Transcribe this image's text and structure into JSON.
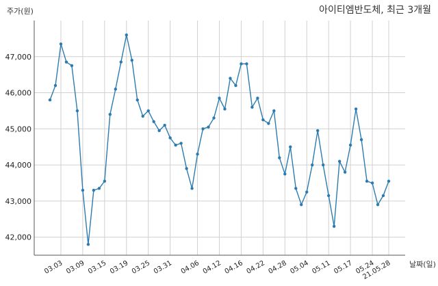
{
  "chart_data": {
    "type": "line",
    "title": "아이티엠반도체, 최근 3개월",
    "ylabel": "주가(원)",
    "xlabel": "날짜(일)",
    "ylim": [
      41500,
      48000
    ],
    "grid": true,
    "line_color": "#2b7bb0",
    "y_ticks": [
      42000,
      43000,
      44000,
      45000,
      46000,
      47000
    ],
    "y_tick_labels": [
      "42,000",
      "43,000",
      "44,000",
      "45,000",
      "46,000",
      "47,000"
    ],
    "x_tick_indices": [
      2,
      6,
      10,
      14,
      18,
      22,
      27,
      31,
      35,
      39,
      43,
      47,
      51,
      55,
      59
    ],
    "x_tick_labels": [
      "03.03",
      "03.09",
      "03.15",
      "03.19",
      "03.25",
      "03.31",
      "04.06",
      "04.12",
      "04.16",
      "04.22",
      "04.28",
      "05.04",
      "05.11",
      "05.17",
      "05.24"
    ],
    "x_end_label": "21.05.28",
    "values": [
      45800,
      46200,
      47350,
      46850,
      46750,
      45500,
      43300,
      41800,
      43300,
      43350,
      43550,
      45400,
      46100,
      46850,
      47600,
      46900,
      45800,
      45350,
      45500,
      45200,
      44950,
      45100,
      44750,
      44550,
      44600,
      43900,
      43350,
      44300,
      45000,
      45050,
      45300,
      45850,
      45550,
      46400,
      46200,
      46800,
      46800,
      45600,
      45850,
      45250,
      45150,
      45500,
      44200,
      43750,
      44500,
      43350,
      42900,
      43250,
      44000,
      44950,
      44000,
      43150,
      42300,
      44100,
      43800,
      44550,
      45550,
      44700,
      43550,
      43500,
      42900,
      43150,
      43550
    ]
  }
}
